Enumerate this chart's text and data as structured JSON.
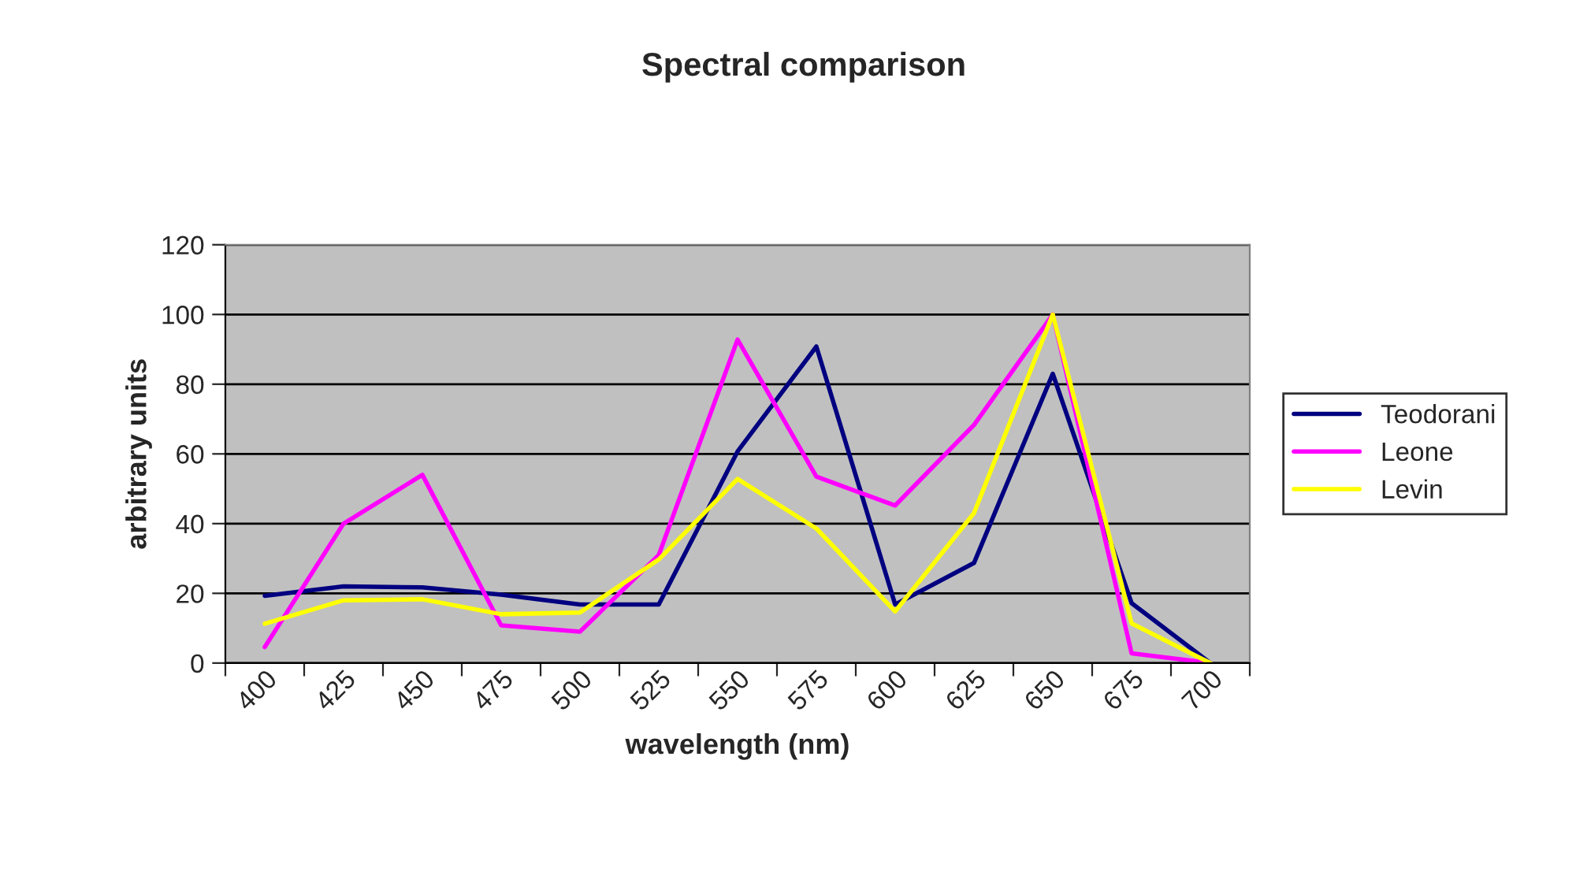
{
  "chart_data": {
    "type": "line",
    "title": "Spectral comparison",
    "xlabel": "wavelength (nm)",
    "ylabel": "arbitrary units",
    "categories": [
      "400",
      "425",
      "450",
      "475",
      "500",
      "525",
      "550",
      "575",
      "600",
      "625",
      "650",
      "675",
      "700"
    ],
    "series": [
      {
        "name": "Teodorani",
        "color": "#000080",
        "values": [
          19.3,
          22,
          21.7,
          19.6,
          16.8,
          16.8,
          60.7,
          90.8,
          16.8,
          28.7,
          83,
          17.2,
          0
        ]
      },
      {
        "name": "Leone",
        "color": "#ff00ff",
        "values": [
          4.6,
          40,
          54,
          10.8,
          9,
          31,
          92.8,
          53.5,
          45.2,
          68.3,
          100,
          2.8,
          0
        ]
      },
      {
        "name": "Levin",
        "color": "#ffff00",
        "values": [
          11.3,
          18,
          18.3,
          14,
          14.5,
          29.7,
          52.8,
          38.6,
          14.8,
          43,
          100,
          11.4,
          0
        ]
      }
    ],
    "ylim": [
      0,
      120
    ],
    "yticks": [
      0,
      20,
      40,
      60,
      80,
      100,
      120
    ],
    "grid": "y",
    "legend": "right",
    "marker": "none",
    "line_style": "solid"
  }
}
